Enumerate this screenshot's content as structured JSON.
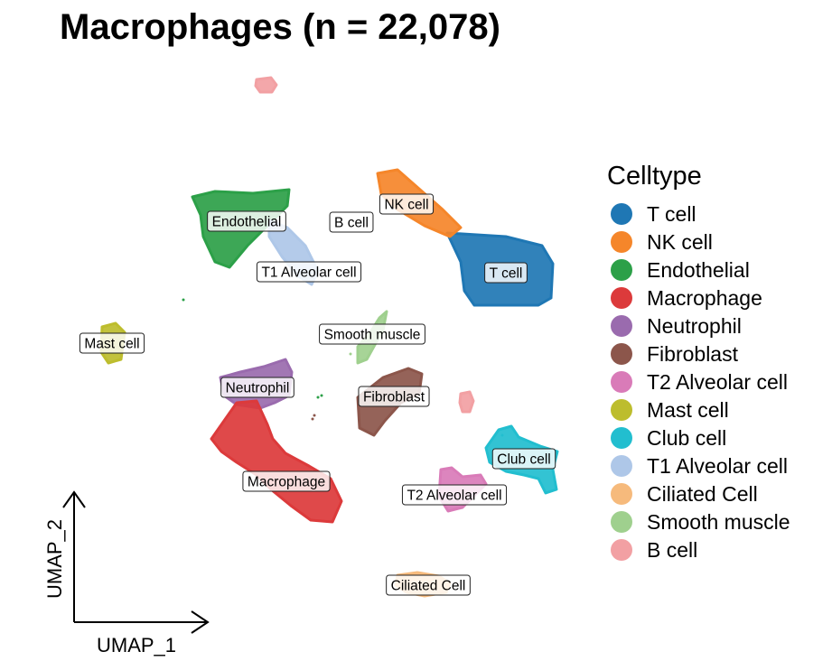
{
  "chart_data": {
    "type": "scatter",
    "title": "Macrophages (n = 22,078)",
    "xlabel": "UMAP_1",
    "ylabel": "UMAP_2",
    "legend_title": "Celltype",
    "legend_position": "right",
    "grid": false,
    "series": [
      {
        "name": "T cell",
        "color": "#1F77B4"
      },
      {
        "name": "NK cell",
        "color": "#F5862A"
      },
      {
        "name": "Endothelial",
        "color": "#2CA048"
      },
      {
        "name": "Macrophage",
        "color": "#DC3A3B"
      },
      {
        "name": "Neutrophil",
        "color": "#9A6BAE"
      },
      {
        "name": "Fibroblast",
        "color": "#8C564B"
      },
      {
        "name": "T2 Alveolar cell",
        "color": "#D97BB8"
      },
      {
        "name": "Mast cell",
        "color": "#BDBD2D"
      },
      {
        "name": "Club cell",
        "color": "#22BECF"
      },
      {
        "name": "T1 Alveolar cell",
        "color": "#AEC7E8"
      },
      {
        "name": "Ciliated Cell",
        "color": "#F6BA7C"
      },
      {
        "name": "Smooth muscle",
        "color": "#9FD08E"
      },
      {
        "name": "B cell",
        "color": "#F2A0A3"
      }
    ],
    "cluster_labels": [
      "T cell",
      "NK cell",
      "Endothelial",
      "T1 Alveolar cell",
      "B cell",
      "Mast cell",
      "Smooth muscle",
      "Neutrophil",
      "Fibroblast",
      "Macrophage",
      "Club cell",
      "T2 Alveolar cell",
      "Ciliated Cell"
    ]
  }
}
